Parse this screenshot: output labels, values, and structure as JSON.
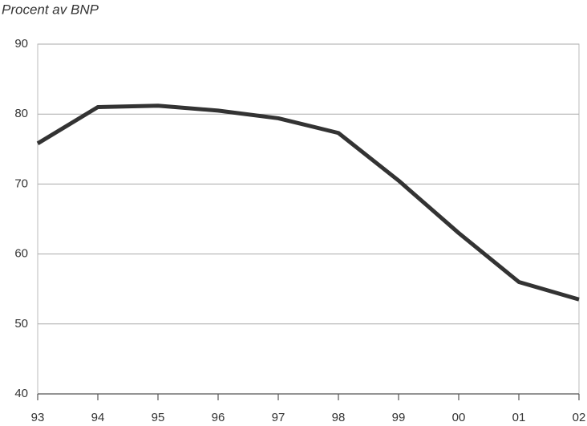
{
  "chart_data": {
    "type": "line",
    "title": "Procent av BNP",
    "categories": [
      "93",
      "94",
      "95",
      "96",
      "97",
      "98",
      "99",
      "00",
      "01",
      "02"
    ],
    "values": [
      75.8,
      81.0,
      81.2,
      80.5,
      79.4,
      77.3,
      70.5,
      63.0,
      56.0,
      53.5
    ],
    "color": "#333333",
    "ylim": [
      40,
      90
    ],
    "yticks": [
      40,
      50,
      60,
      70,
      80,
      90
    ],
    "grid": true
  }
}
